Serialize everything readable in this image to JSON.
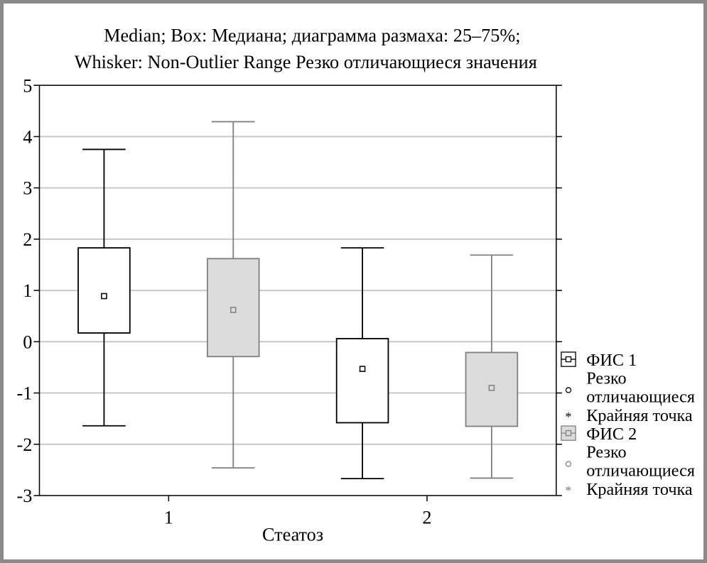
{
  "chart_data": {
    "type": "box",
    "title_line1": "Median; Box: Медиана; диаграмма размаха: 25–75%;",
    "title_line2": "Whisker: Non-Outlier Range Резко отличающиеся значения",
    "xlabel": "Стеатоз",
    "ylabel": "",
    "categories": [
      "1",
      "2"
    ],
    "ylim": [
      -3,
      5
    ],
    "yticks": [
      "5",
      "4",
      "3",
      "2",
      "1",
      "0",
      "-1",
      "-2",
      "-3"
    ],
    "grid": true,
    "legend_position": "right",
    "series": [
      {
        "name": "ФИС 1",
        "color": "#ffffff",
        "line_color": "#000000",
        "boxes": [
          {
            "category": "1",
            "whisker_low": -1.64,
            "q1": 0.17,
            "median": 0.89,
            "q3": 1.83,
            "whisker_high": 3.75
          },
          {
            "category": "2",
            "whisker_low": -2.67,
            "q1": -1.58,
            "median": -0.53,
            "q3": 0.06,
            "whisker_high": 1.83
          }
        ]
      },
      {
        "name": "ФИС 2",
        "color": "#dcdcdc",
        "line_color": "#808080",
        "boxes": [
          {
            "category": "1",
            "whisker_low": -2.46,
            "q1": -0.29,
            "median": 0.62,
            "q3": 1.62,
            "whisker_high": 4.29
          },
          {
            "category": "2",
            "whisker_low": -2.66,
            "q1": -1.65,
            "median": -0.9,
            "q3": -0.21,
            "whisker_high": 1.69
          }
        ]
      }
    ],
    "legend": [
      {
        "series": "ФИС 1",
        "label": "ФИС 1",
        "outlier_label_1": "Резко",
        "outlier_label_2": "отличающиеся",
        "extreme_label": "Крайняя точка"
      },
      {
        "series": "ФИС 2",
        "label": "ФИС 2",
        "outlier_label_1": "Резко",
        "outlier_label_2": "отличающиеся",
        "extreme_label": "Крайняя точка"
      }
    ]
  }
}
